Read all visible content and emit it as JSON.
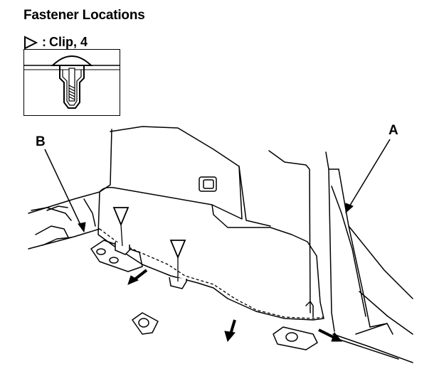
{
  "header": {
    "title": "Fastener Locations"
  },
  "legend": {
    "symbol_icon": "open-triangle-right-icon",
    "separator": ":",
    "text": "Clip, 4"
  },
  "callouts": {
    "a": "A",
    "b": "B"
  },
  "colors": {
    "ink": "#000000",
    "paper": "#ffffff"
  }
}
